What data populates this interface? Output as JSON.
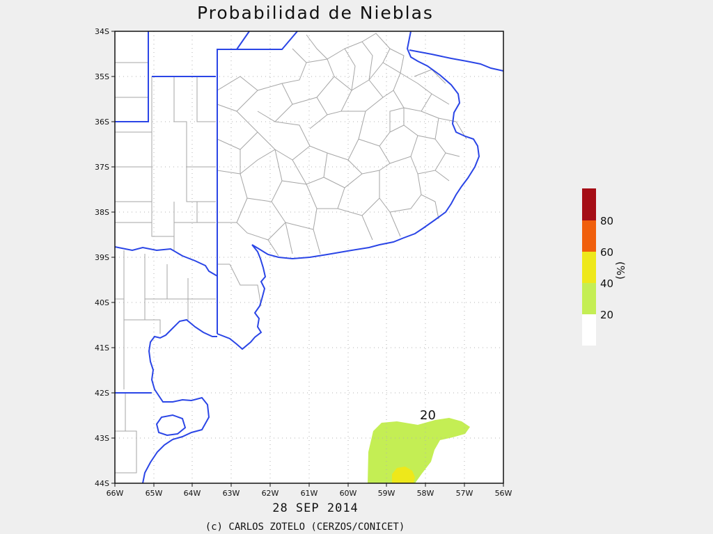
{
  "title": "Probabilidad de Nieblas",
  "date": "28 SEP 2014",
  "credit": "(c) CARLOS ZOTELO (CERZOS/CONICET)",
  "lat_ticks": [
    "34S",
    "35S",
    "36S",
    "37S",
    "38S",
    "39S",
    "40S",
    "41S",
    "42S",
    "43S",
    "44S"
  ],
  "lon_ticks": [
    "66W",
    "65W",
    "64W",
    "63W",
    "62W",
    "61W",
    "60W",
    "59W",
    "58W",
    "57W",
    "56W"
  ],
  "contour_label": "20",
  "colorbar": {
    "units": "(%)",
    "labels": [
      "20",
      "40",
      "60",
      "80"
    ],
    "colors": [
      "#ffffff",
      "#c4ee54",
      "#eee81a",
      "#f05f0c",
      "#a50d16"
    ]
  },
  "colors": {
    "coast": "#2a45e6",
    "boundary": "#a6a6a6",
    "grid": "#b0b0b0"
  }
}
